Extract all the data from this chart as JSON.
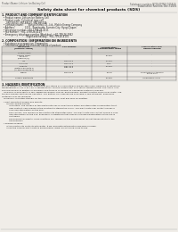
{
  "bg_color": "#f0ede8",
  "title": "Safety data sheet for chemical products (SDS)",
  "header_left": "Product Name: Lithium Ion Battery Cell",
  "header_right_line1": "Substance number: NTD5407NG-D01B10",
  "header_right_line2": "Established / Revision: Dec.7.2016",
  "section1_title": "1. PRODUCT AND COMPANY IDENTIFICATION",
  "section1_lines": [
    "  • Product name: Lithium Ion Battery Cell",
    "  • Product code: Cylindrical type cell",
    "       SNT-B6500, SNT-B8500, SNT-B6500A",
    "  • Company name:       Sanyo Eneray Co., Ltd., Mobile Energy Company",
    "  • Address:               2221   Kamitsuwa, Sumoto-City, Hyogo, Japan",
    "  • Telephone number: +81-1799-26-4111",
    "  • Fax number:  +81-1799-26-4129",
    "  • Emergency telephone number (Weekday): +81-799-26-3962",
    "                                    (Night and holiday): +81-799-26-4101"
  ],
  "section2_title": "2. COMPOSITION / INFORMATION ON INGREDIENTS",
  "section2_intro": "  • Substance or preparation: Preparation",
  "section2_sub": "  • Information about the chemical nature of product:",
  "table_headers": [
    "Component\n(chemical name)",
    "CAS number",
    "Concentration /\nConcentration range",
    "Classification and\nhazard labeling"
  ],
  "table_subheader": "Several name",
  "table_rows": [
    [
      "Lithium cobalt\ntantalate\n(LiMnCoO(x))",
      "-",
      "30-60%",
      "-"
    ],
    [
      "Iron",
      "7439-89-6",
      "10-20%",
      "-"
    ],
    [
      "Aluminum",
      "7429-90-5",
      "2-8%",
      "-"
    ],
    [
      "Graphite\n(Metal in graphite-1)\n(Al-Mo in graphite-1)",
      "7782-42-5\n7782-44-2",
      "10-20%",
      "-"
    ],
    [
      "Copper",
      "7440-50-8",
      "5-15%",
      "Sensitization of the skin\ngroup No.2"
    ],
    [
      "Organic electrolyte",
      "-",
      "10-20%",
      "Inflammable liquid"
    ]
  ],
  "section3_title": "3. HAZARDS IDENTIFICATION",
  "section3_lines": [
    "For the battery cell, chemical substances are stored in a hermetically sealed steel case, designed to withstand",
    "temperatures of -20°C to +60°C specifications. During normal use, as a result, during normal use, there is no",
    "physical danger of ignition or explosion and there is no danger of hazardous materials leakage.",
    "   However, if exposed to a fire, added mechanical shocks, decomposed, ambient electric shock or by metal use,",
    "the gas release vent can be operated. The battery cell case will be breached of fire-retardant, hazardous",
    "materials may be released.",
    "   Moreover, if heated strongly by the surrounding fire, soot gas may be emitted.",
    "",
    "  • Most important hazard and effects:",
    "       Human health effects:",
    "           Inhalation: The release of the electrolyte has an anesthesia action and stimulates a respiratory tract.",
    "           Skin contact: The release of the electrolyte stimulates a skin. The electrolyte skin contact causes a",
    "           sore and stimulation on the skin.",
    "           Eye contact: The release of the electrolyte stimulates eyes. The electrolyte eye contact causes a sore",
    "           and stimulation on the eye. Especially, a substance that causes a strong inflammation of the eye is",
    "           contained.",
    "           Environmental effects: Since a battery cell remains in the environment, do not throw out it into the",
    "           environment.",
    "",
    "  • Specific hazards:",
    "       If the electrolyte contacts with water, it will generate detrimental hydrogen fluoride.",
    "       Since the organic electrolyte is inflammable liquid, do not bring close to fire."
  ]
}
